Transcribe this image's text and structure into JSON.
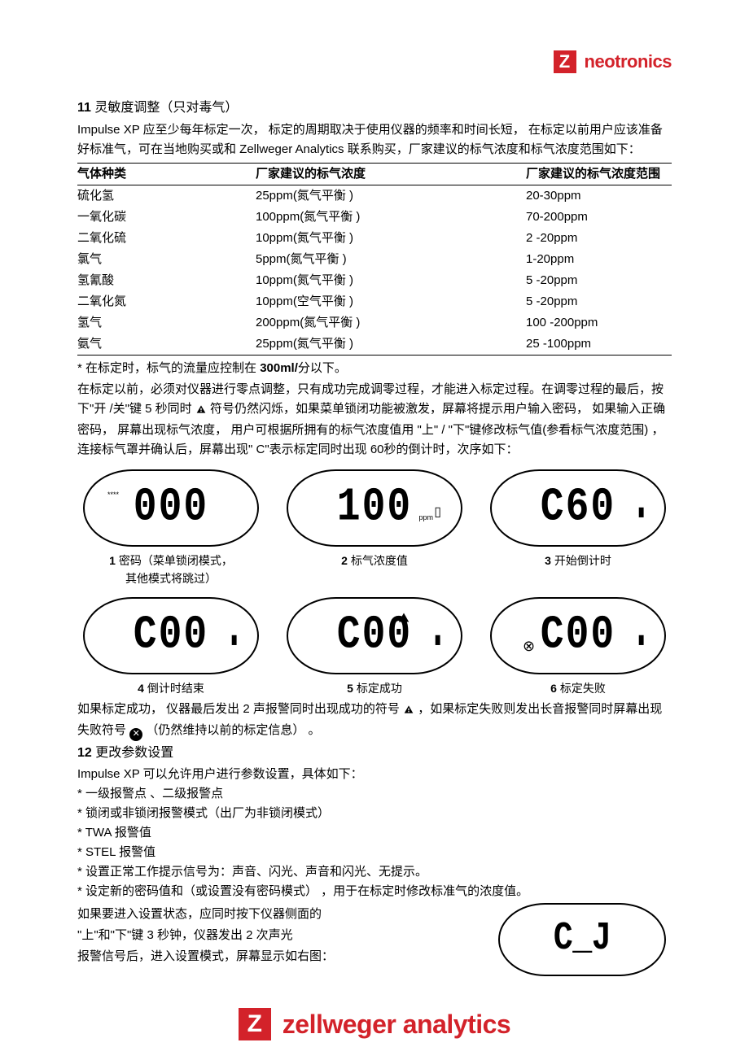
{
  "brand": {
    "top_z": "Z",
    "top_name": "neotronics",
    "bottom_z": "Z",
    "bottom_name": "zellweger analytics",
    "red": "#d3222a",
    "white": "#ffffff"
  },
  "section11": {
    "num": "11",
    "title": " 灵敏度调整（只对毒气）",
    "intro": "Impulse XP 应至少每年标定一次，    标定的周期取决于使用仪器的频率和时间长短，    在标定以前用户应该准备好标准气，可在当地购买或和    Zellweger Analytics  联系购买，厂家建议的标气浓度和标气浓度范围如下："
  },
  "table": {
    "headers": [
      "气体种类",
      "厂家建议的标气浓度",
      "厂家建议的标气浓度范围"
    ],
    "rows": [
      [
        "硫化氢",
        "25ppm(氮气平衡  )",
        "20-30ppm"
      ],
      [
        "一氧化碳",
        "100ppm(氮气平衡  )",
        "70-200ppm"
      ],
      [
        "二氧化硫",
        "10ppm(氮气平衡  )",
        "2 -20ppm"
      ],
      [
        "氯气",
        "5ppm(氮气平衡  )",
        "1-20ppm"
      ],
      [
        "氢氰酸",
        "10ppm(氮气平衡  )",
        "5 -20ppm"
      ],
      [
        "二氧化氮",
        "10ppm(空气平衡  )",
        "5 -20ppm"
      ],
      [
        "氢气",
        "200ppm(氮气平衡  )",
        "100 -200ppm"
      ],
      [
        "氨气",
        "25ppm(氮气平衡  )",
        "25 -100ppm"
      ]
    ]
  },
  "notes": {
    "flow_prefix": "*  在标定时，标气的流量应控制在    ",
    "flow_bold": "300ml/",
    "flow_suffix": "分以下。",
    "para2a": "在标定以前，必须对仪器进行零点调整，只有成功完成调零过程，才能进入标定过程。在调零过程的最后，按下\"开  /关\"键  5 秒同时 ",
    "para2b": " 符号仍然闪烁，如果菜单锁闭功能被激发，屏幕将提示用户输入密码， 如果输入正确密码， 屏幕出现标气浓度， 用户可根据所拥有的标气浓度值用  \"上\" / \"下\"键修改标气值(参看标气浓度范围)   ，连接标气罩并确认后，屏幕出现\"   C\"表示标定同时出现   60秒的倒计时，次序如下："
  },
  "lcd": {
    "d1": {
      "num": "1",
      "val": "000",
      "top": "****",
      "cap": "密码（菜单锁闭模式，",
      "sub": "其他模式将跳过）"
    },
    "d2": {
      "num": "2",
      "val": "100",
      "unit": "ppm",
      "cap": "标气浓度值"
    },
    "d3": {
      "num": "3",
      "val": "C60",
      "cap": "开始倒计时"
    },
    "d4": {
      "num": "4",
      "val": "C00",
      "cap": "倒计时结束"
    },
    "d5": {
      "num": "5",
      "val": "C00",
      "cap": "标定成功"
    },
    "d6": {
      "num": "6",
      "val": "C00",
      "cap": "标定失败"
    }
  },
  "result": {
    "p1a": "如果标定成功， 仪器最后发出  2 声报警同时出现成功的符号   ",
    "p1b": "，如果标定失败则发出长音报警同时屏幕出现失败符号  ",
    "p1c": "（仍然维持以前的标定信息）  。",
    "x": "✕"
  },
  "section12": {
    "num": "12",
    "title": " 更改参数设置",
    "intro": "Impulse XP 可以允许用户进行参数设置，具体如下：",
    "bullets": [
      "*  一级报警点  、二级报警点",
      "*  锁闭或非锁闭报警模式（出厂为非锁闭模式）",
      "* TWA  报警值",
      "* STEL 报警值",
      "*  设置正常工作提示信号为：声音、闪光、声音和闪光、无提示。",
      "*  设定新的密码值和（或设置没有密码模式）   ，用于在标定时修改标准气的浓度值。"
    ],
    "tail1": "如果要进入设置状态，应同时按下仪器侧面的",
    "tail2": "\"上\"和\"下\"键  3 秒钟，仪器发出  2 次声光",
    "tail3": "报警信号后，进入设置模式，屏幕显示如右图：",
    "lcd_val": "C_J"
  }
}
